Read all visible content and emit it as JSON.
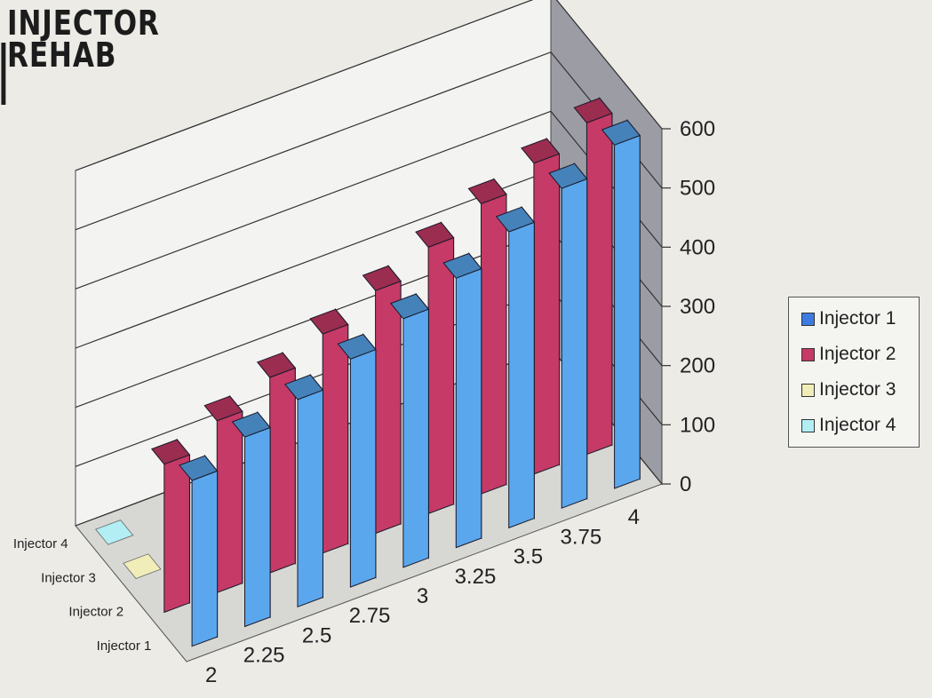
{
  "logo": {
    "line1": "INJECTOR",
    "line2": "REHAB"
  },
  "chart_data": {
    "type": "bar",
    "title": "",
    "xlabel": "",
    "ylabel": "",
    "ylim": [
      0,
      600
    ],
    "y_ticks": [
      0,
      100,
      200,
      300,
      400,
      500,
      600
    ],
    "categories": [
      "2",
      "2.25",
      "2.5",
      "2.75",
      "3",
      "3.25",
      "3.5",
      "3.75",
      "4"
    ],
    "series": [
      {
        "name": "Injector 1",
        "color": "#5aa7ee",
        "values": [
          280,
          320,
          350,
          385,
          420,
          455,
          500,
          540,
          580
        ]
      },
      {
        "name": "Injector 2",
        "color": "#c53a66",
        "values": [
          250,
          290,
          330,
          370,
          410,
          450,
          490,
          525,
          560
        ]
      },
      {
        "name": "Injector 3",
        "color": "#f0edb8",
        "values": [
          0,
          0,
          0,
          0,
          0,
          0,
          0,
          0,
          0
        ]
      },
      {
        "name": "Injector 4",
        "color": "#b2eef4",
        "values": [
          0,
          0,
          0,
          0,
          0,
          0,
          0,
          0,
          0
        ]
      }
    ],
    "depth_labels": [
      "Injector 4",
      "Injector 3",
      "Injector 2",
      "Injector 1"
    ],
    "legend_position": "right",
    "grid": true,
    "view": "3d-column"
  },
  "legend": {
    "items": [
      {
        "label": "Injector 1",
        "color": "#3d7be0"
      },
      {
        "label": "Injector 2",
        "color": "#c53a66"
      },
      {
        "label": "Injector 3",
        "color": "#f0edb8"
      },
      {
        "label": "Injector 4",
        "color": "#b2eef4"
      }
    ]
  }
}
